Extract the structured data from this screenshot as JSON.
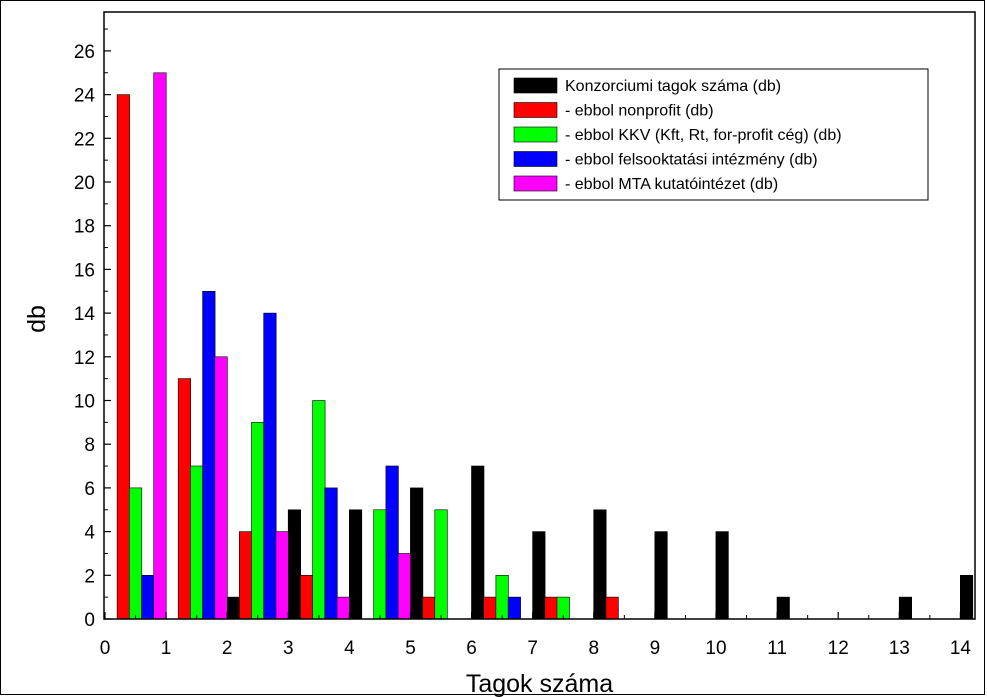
{
  "chart_data": {
    "type": "bar",
    "xlabel": "Tagok száma",
    "ylabel": "db",
    "xlim": [
      0,
      14.2
    ],
    "ylim": [
      0,
      27
    ],
    "x_ticks": [
      "0",
      "1",
      "2",
      "3",
      "4",
      "5",
      "6",
      "7",
      "8",
      "9",
      "10",
      "11",
      "12",
      "13",
      "14"
    ],
    "y_ticks": [
      "0",
      "2",
      "4",
      "6",
      "8",
      "10",
      "12",
      "14",
      "16",
      "18",
      "20",
      "22",
      "24",
      "26"
    ],
    "grid": false,
    "legend_position": "top-right",
    "series": [
      {
        "name": "Konzorciumi tagok száma (db)",
        "color": "#000000",
        "points": [
          [
            2.1,
            1
          ],
          [
            3.1,
            5
          ],
          [
            4.1,
            5
          ],
          [
            5.1,
            6
          ],
          [
            6.1,
            7
          ],
          [
            7.1,
            4
          ],
          [
            8.1,
            5
          ],
          [
            9.1,
            4
          ],
          [
            10.1,
            4
          ],
          [
            11.1,
            1
          ],
          [
            13.1,
            1
          ],
          [
            14.1,
            2
          ]
        ]
      },
      {
        "name": "- ebbol nonprofit (db)",
        "color": "#ff0000",
        "points": [
          [
            0.3,
            24
          ],
          [
            1.3,
            11
          ],
          [
            2.3,
            4
          ],
          [
            3.3,
            2
          ],
          [
            5.3,
            1
          ],
          [
            6.3,
            1
          ],
          [
            7.3,
            1
          ],
          [
            8.3,
            1
          ]
        ]
      },
      {
        "name": "- ebbol KKV (Kft, Rt, for-profit cég) (db)",
        "color": "#00ff00",
        "points": [
          [
            0.5,
            6
          ],
          [
            1.5,
            7
          ],
          [
            2.5,
            9
          ],
          [
            3.5,
            10
          ],
          [
            4.5,
            5
          ],
          [
            5.5,
            5
          ],
          [
            6.5,
            2
          ],
          [
            7.5,
            1
          ]
        ]
      },
      {
        "name": "- ebbol felsooktatási intézmény (db)",
        "color": "#0000ff",
        "points": [
          [
            0.7,
            2
          ],
          [
            1.7,
            15
          ],
          [
            2.7,
            14
          ],
          [
            3.7,
            6
          ],
          [
            4.7,
            7
          ],
          [
            6.7,
            1
          ]
        ]
      },
      {
        "name": "- ebbol MTA kutatóintézet (db)",
        "color": "#ff00ff",
        "points": [
          [
            0.9,
            25
          ],
          [
            1.9,
            12
          ],
          [
            2.9,
            4
          ],
          [
            3.9,
            1
          ],
          [
            4.9,
            3
          ]
        ]
      }
    ]
  }
}
